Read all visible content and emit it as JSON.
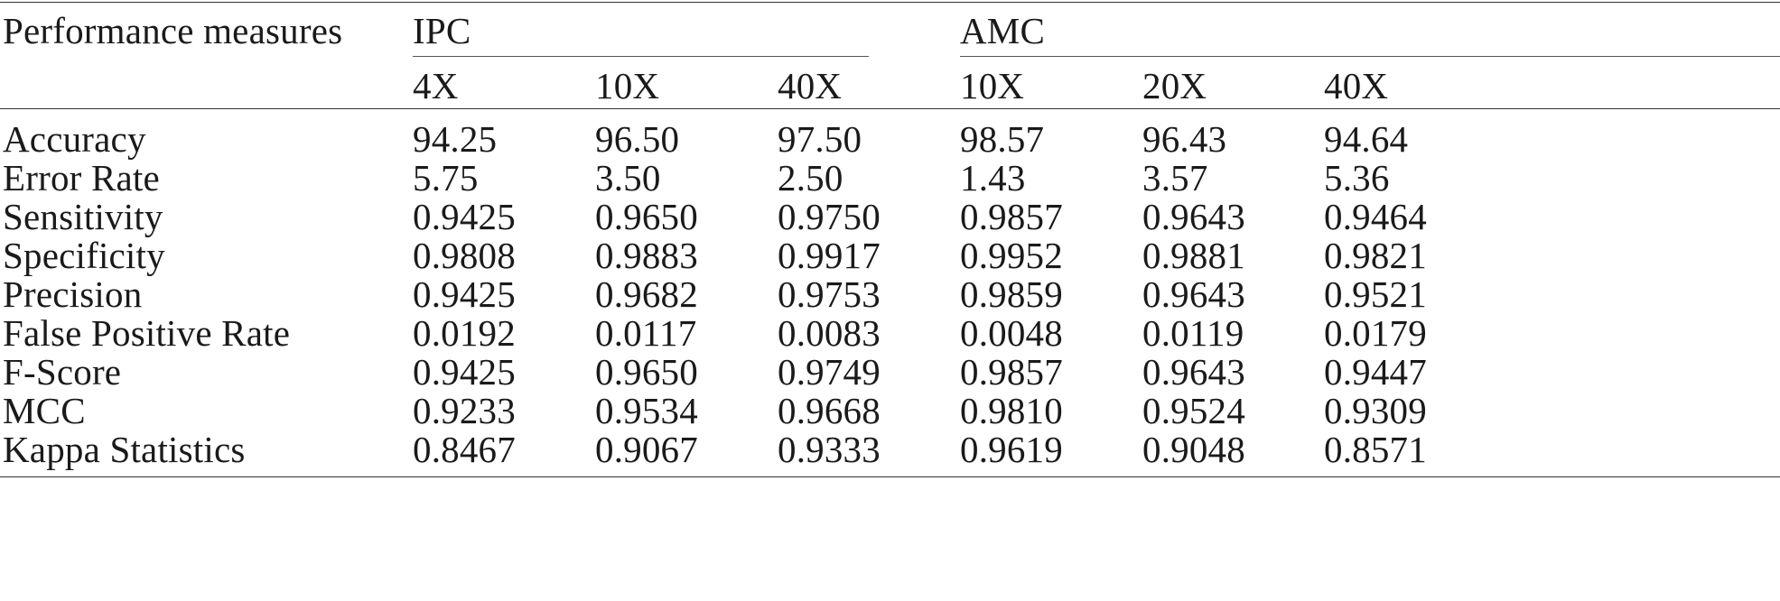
{
  "table": {
    "stub_header": "Performance measures",
    "groups": [
      {
        "label": "IPC",
        "columns": [
          "4X",
          "10X",
          "40X"
        ]
      },
      {
        "label": "AMC",
        "columns": [
          "10X",
          "20X",
          "40X"
        ]
      }
    ],
    "rows": [
      {
        "label": "Accuracy",
        "values": [
          "94.25",
          "96.50",
          "97.50",
          "98.57",
          "96.43",
          "94.64"
        ]
      },
      {
        "label": "Error Rate",
        "values": [
          "5.75",
          "3.50",
          "2.50",
          "1.43",
          "3.57",
          "5.36"
        ]
      },
      {
        "label": "Sensitivity",
        "values": [
          "0.9425",
          "0.9650",
          "0.9750",
          "0.9857",
          "0.9643",
          "0.9464"
        ]
      },
      {
        "label": "Specificity",
        "values": [
          "0.9808",
          "0.9883",
          "0.9917",
          "0.9952",
          "0.9881",
          "0.9821"
        ]
      },
      {
        "label": "Precision",
        "values": [
          "0.9425",
          "0.9682",
          "0.9753",
          "0.9859",
          "0.9643",
          "0.9521"
        ]
      },
      {
        "label": "False Positive Rate",
        "values": [
          "0.0192",
          "0.0117",
          "0.0083",
          "0.0048",
          "0.0119",
          "0.0179"
        ]
      },
      {
        "label": "F-Score",
        "values": [
          "0.9425",
          "0.9650",
          "0.9749",
          "0.9857",
          "0.9643",
          "0.9447"
        ]
      },
      {
        "label": "MCC",
        "values": [
          "0.9233",
          "0.9534",
          "0.9668",
          "0.9810",
          "0.9524",
          "0.9309"
        ]
      },
      {
        "label": "Kappa Statistics",
        "values": [
          "0.8467",
          "0.9067",
          "0.9333",
          "0.9619",
          "0.9048",
          "0.8571"
        ]
      }
    ]
  }
}
